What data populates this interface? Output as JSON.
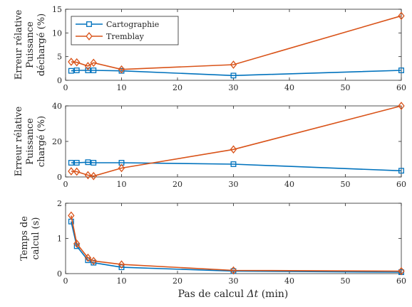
{
  "colors": {
    "cartographie": "#0072BD",
    "tremblay": "#D95319",
    "axis": "#262626"
  },
  "legend": {
    "items": [
      "Cartographie",
      "Tremblay"
    ],
    "position": "top-left (top panel)"
  },
  "x_axis": {
    "label_prefix": "Pas de calcul ",
    "label_symbol": "Δt",
    "label_unit": " (min)"
  },
  "chart_data": [
    {
      "type": "line",
      "ylabel_lines": [
        "Erreur rélative",
        "Puissance",
        "déchargé (%)"
      ],
      "xlim": [
        0,
        60
      ],
      "ylim": [
        0,
        15
      ],
      "xticks": [
        0,
        10,
        20,
        30,
        40,
        50,
        60
      ],
      "yticks": [
        0,
        5,
        10,
        15
      ],
      "grid": false,
      "series": [
        {
          "name": "Cartographie",
          "marker": "square",
          "x": [
            1,
            2,
            4,
            5,
            10,
            30,
            60
          ],
          "y": [
            2.0,
            2.1,
            2.1,
            2.1,
            2.0,
            1.0,
            2.1
          ]
        },
        {
          "name": "Tremblay",
          "marker": "diamond",
          "x": [
            1,
            2,
            4,
            5,
            10,
            30,
            60
          ],
          "y": [
            3.9,
            3.8,
            3.0,
            3.7,
            2.3,
            3.3,
            13.6
          ]
        }
      ]
    },
    {
      "type": "line",
      "ylabel_lines": [
        "Erreur rélative",
        "Puissance",
        "chargé (%)"
      ],
      "xlim": [
        0,
        60
      ],
      "ylim": [
        0,
        40
      ],
      "xticks": [
        0,
        10,
        20,
        30,
        40,
        50,
        60
      ],
      "yticks": [
        0,
        20,
        40
      ],
      "grid": false,
      "series": [
        {
          "name": "Cartographie",
          "marker": "square",
          "x": [
            1,
            2,
            4,
            5,
            10,
            30,
            60
          ],
          "y": [
            8.0,
            8.0,
            8.3,
            8.0,
            8.0,
            7.2,
            3.5
          ]
        },
        {
          "name": "Tremblay",
          "marker": "diamond",
          "x": [
            1,
            2,
            4,
            5,
            10,
            30,
            60
          ],
          "y": [
            3.2,
            3.0,
            1.0,
            0.5,
            5.0,
            15.5,
            40.0
          ]
        }
      ]
    },
    {
      "type": "line",
      "ylabel_lines": [
        "Temps de",
        "calcul (s)"
      ],
      "xlim": [
        0,
        60
      ],
      "ylim": [
        0,
        2
      ],
      "xticks": [
        0,
        10,
        20,
        30,
        40,
        50,
        60
      ],
      "yticks": [
        0,
        1,
        2
      ],
      "grid": false,
      "series": [
        {
          "name": "Cartographie",
          "marker": "square",
          "x": [
            1,
            2,
            4,
            5,
            10,
            30,
            60
          ],
          "y": [
            1.48,
            0.78,
            0.38,
            0.31,
            0.18,
            0.07,
            0.04
          ]
        },
        {
          "name": "Tremblay",
          "marker": "diamond",
          "x": [
            1,
            2,
            4,
            5,
            10,
            30,
            60
          ],
          "y": [
            1.65,
            0.85,
            0.45,
            0.36,
            0.26,
            0.09,
            0.07
          ]
        }
      ]
    }
  ]
}
